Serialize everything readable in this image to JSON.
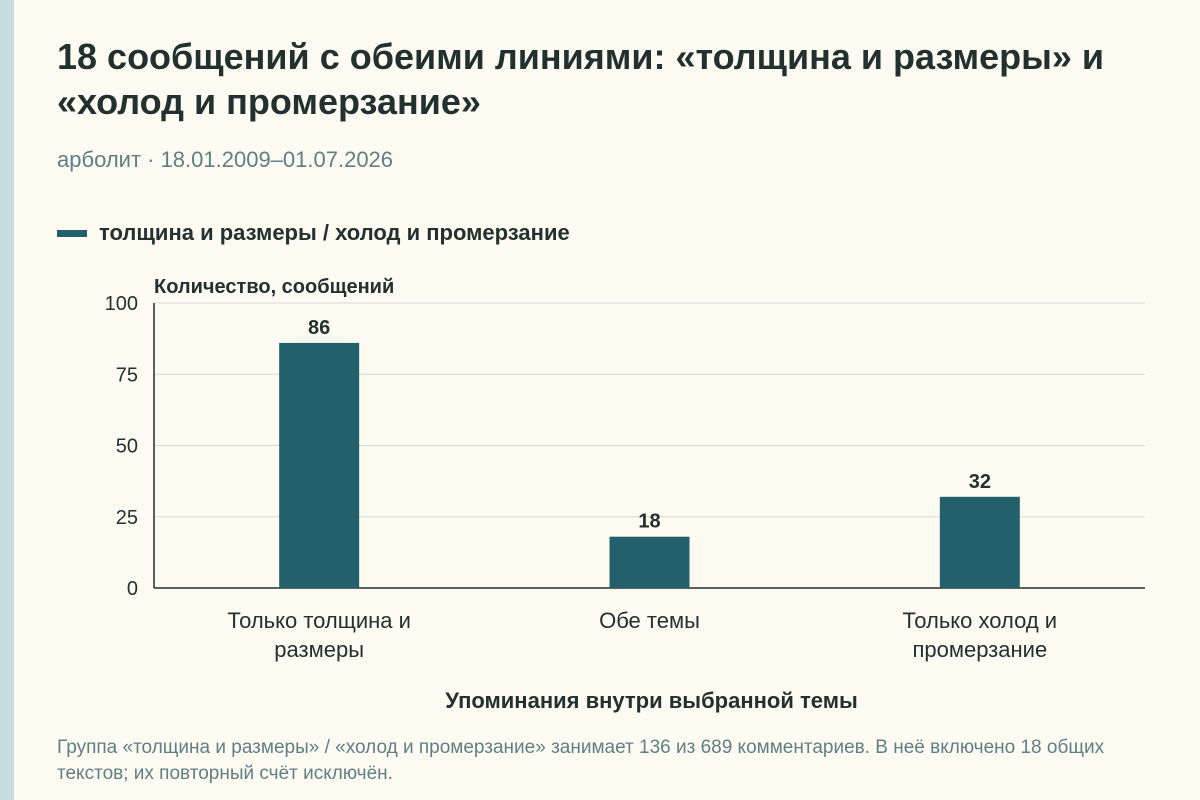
{
  "title": "18 сообщений с обеими линиями: «толщина и размеры» и «холод и промерзание»",
  "subtitle": "арболит · 18.01.2009–01.07.2026",
  "footnote": "Группа «толщина и размеры» / «холод и промерзание» занимает 136 из 689 комментариев. В неё включено 18 общих текстов; их повторный счёт исключён.",
  "colors": {
    "bar": "#24606b",
    "background": "#fdfbf1",
    "muted_text": "#5f7f85"
  },
  "chart_data": {
    "type": "bar",
    "title": "18 сообщений с обеими линиями: «толщина и размеры» и «холод и промерзание»",
    "categories": [
      [
        "Только толщина и",
        "размеры"
      ],
      [
        "Обе темы"
      ],
      [
        "Только холод и",
        "промерзание"
      ]
    ],
    "series": [
      {
        "name": "толщина и размеры / холод и промерзание",
        "values": [
          86,
          18,
          32
        ]
      }
    ],
    "xlabel": "Упоминания внутри выбранной темы",
    "ylabel": "Количество, сообщений",
    "ylim": [
      0,
      100
    ],
    "yticks": [
      0,
      25,
      50,
      75,
      100
    ],
    "grid": true,
    "legend": "top-left"
  }
}
